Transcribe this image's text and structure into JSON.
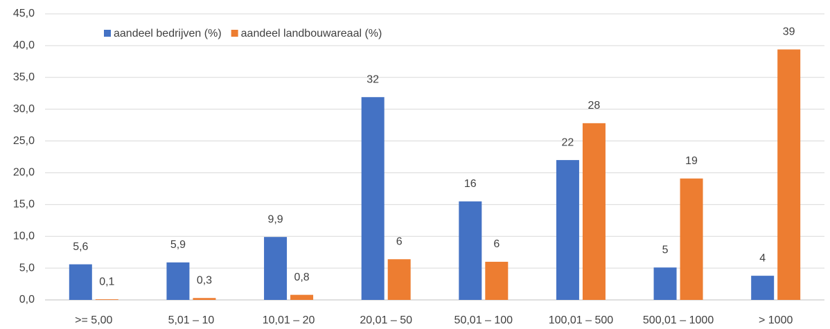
{
  "chart_data": {
    "type": "bar",
    "categories": [
      ">= 5,00",
      "5,01 – 10",
      "10,01 – 20",
      "20,01 – 50",
      "50,01 – 100",
      "100,01 – 500",
      "500,01 – 1000",
      "> 1000"
    ],
    "series": [
      {
        "name": "aandeel bedrijven (%)",
        "color": "#4472c4",
        "values": [
          5.6,
          5.9,
          9.9,
          31.9,
          15.5,
          22.0,
          5.1,
          3.8
        ],
        "value_labels": [
          "5,6",
          "5,9",
          "9,9",
          "32",
          "16",
          "22",
          "5",
          "4"
        ]
      },
      {
        "name": "aandeel landbouwareaal (%)",
        "color": "#ed7d31",
        "values": [
          0.1,
          0.3,
          0.8,
          6.4,
          6.0,
          27.8,
          19.1,
          39.4
        ],
        "value_labels": [
          "0,1",
          "0,3",
          "0,8",
          "6",
          "6",
          "28",
          "19",
          "39"
        ]
      }
    ],
    "ylim": [
      0,
      45
    ],
    "yticks": [
      {
        "value": 0,
        "label": "0,0"
      },
      {
        "value": 5,
        "label": "5,0"
      },
      {
        "value": 10,
        "label": "10,0"
      },
      {
        "value": 15,
        "label": "15,0"
      },
      {
        "value": 20,
        "label": "20,0"
      },
      {
        "value": 25,
        "label": "25,0"
      },
      {
        "value": 30,
        "label": "30,0"
      },
      {
        "value": 35,
        "label": "35,0"
      },
      {
        "value": 40,
        "label": "40,0"
      },
      {
        "value": 45,
        "label": "45,0"
      }
    ],
    "grid": true,
    "legend": "top-left"
  }
}
